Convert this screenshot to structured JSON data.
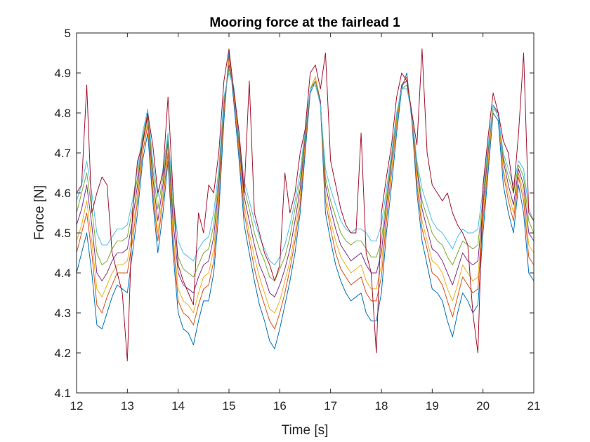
{
  "chart_data": {
    "type": "line",
    "title": "Mooring force at the fairlead 1",
    "xlabel": "Time [s]",
    "ylabel": "Force [N]",
    "xlim": [
      12,
      21
    ],
    "ylim": [
      4.1,
      5
    ],
    "x_ticks": [
      12,
      13,
      14,
      15,
      16,
      17,
      18,
      19,
      20,
      21
    ],
    "y_ticks": [
      4.1,
      4.2,
      4.3,
      4.4,
      4.5,
      4.6,
      4.7,
      4.8,
      4.9,
      5
    ],
    "x_tick_labels": [
      "12",
      "13",
      "14",
      "15",
      "16",
      "17",
      "18",
      "19",
      "20",
      "21"
    ],
    "y_tick_labels": [
      "4.1",
      "4.2",
      "4.3",
      "4.4",
      "4.5",
      "4.6",
      "4.7",
      "4.8",
      "4.9",
      "5"
    ],
    "grid": false,
    "box": true,
    "x": [
      12.0,
      12.1,
      12.2,
      12.3,
      12.4,
      12.5,
      12.6,
      12.7,
      12.8,
      12.9,
      13.0,
      13.1,
      13.2,
      13.3,
      13.4,
      13.5,
      13.6,
      13.7,
      13.8,
      13.9,
      14.0,
      14.1,
      14.2,
      14.3,
      14.4,
      14.5,
      14.6,
      14.7,
      14.8,
      14.9,
      15.0,
      15.1,
      15.2,
      15.3,
      15.4,
      15.5,
      15.6,
      15.7,
      15.8,
      15.9,
      16.0,
      16.1,
      16.2,
      16.3,
      16.4,
      16.5,
      16.6,
      16.7,
      16.8,
      16.9,
      17.0,
      17.1,
      17.2,
      17.3,
      17.4,
      17.5,
      17.6,
      17.7,
      17.8,
      17.9,
      18.0,
      18.1,
      18.2,
      18.3,
      18.4,
      18.5,
      18.6,
      18.7,
      18.8,
      18.9,
      19.0,
      19.1,
      19.2,
      19.3,
      19.4,
      19.5,
      19.6,
      19.7,
      19.8,
      19.9,
      20.0,
      20.1,
      20.2,
      20.3,
      20.4,
      20.5,
      20.6,
      20.7,
      20.8,
      20.9,
      21.0
    ],
    "series": [
      {
        "color": "#0072BD",
        "values": [
          4.4,
          4.45,
          4.5,
          4.4,
          4.27,
          4.26,
          4.3,
          4.34,
          4.37,
          4.36,
          4.35,
          4.45,
          4.55,
          4.68,
          4.75,
          4.58,
          4.45,
          4.55,
          4.68,
          4.45,
          4.3,
          4.26,
          4.25,
          4.22,
          4.28,
          4.33,
          4.33,
          4.4,
          4.55,
          4.78,
          4.95,
          4.82,
          4.68,
          4.52,
          4.45,
          4.38,
          4.32,
          4.28,
          4.23,
          4.21,
          4.26,
          4.32,
          4.38,
          4.45,
          4.55,
          4.7,
          4.85,
          4.88,
          4.82,
          4.55,
          4.48,
          4.42,
          4.38,
          4.35,
          4.33,
          4.34,
          4.35,
          4.3,
          4.28,
          4.28,
          4.35,
          4.5,
          4.62,
          4.75,
          4.86,
          4.9,
          4.78,
          4.6,
          4.48,
          4.42,
          4.36,
          4.35,
          4.33,
          4.28,
          4.24,
          4.3,
          4.35,
          4.33,
          4.3,
          4.32,
          4.5,
          4.65,
          4.8,
          4.78,
          4.62,
          4.55,
          4.5,
          4.62,
          4.55,
          4.4,
          4.38
        ]
      },
      {
        "color": "#D95319",
        "values": [
          4.45,
          4.5,
          4.55,
          4.45,
          4.32,
          4.3,
          4.34,
          4.37,
          4.4,
          4.4,
          4.4,
          4.48,
          4.58,
          4.7,
          4.77,
          4.6,
          4.48,
          4.58,
          4.7,
          4.48,
          4.33,
          4.3,
          4.29,
          4.27,
          4.32,
          4.36,
          4.37,
          4.43,
          4.58,
          4.8,
          4.94,
          4.84,
          4.7,
          4.55,
          4.48,
          4.41,
          4.36,
          4.32,
          4.28,
          4.26,
          4.3,
          4.35,
          4.41,
          4.48,
          4.57,
          4.72,
          4.86,
          4.89,
          4.83,
          4.58,
          4.51,
          4.45,
          4.41,
          4.39,
          4.37,
          4.38,
          4.39,
          4.35,
          4.33,
          4.33,
          4.39,
          4.53,
          4.65,
          4.77,
          4.87,
          4.89,
          4.79,
          4.62,
          4.51,
          4.46,
          4.4,
          4.39,
          4.37,
          4.33,
          4.29,
          4.34,
          4.39,
          4.37,
          4.35,
          4.36,
          4.53,
          4.67,
          4.81,
          4.8,
          4.65,
          4.58,
          4.53,
          4.64,
          4.58,
          4.44,
          4.42
        ]
      },
      {
        "color": "#EDB120",
        "values": [
          4.48,
          4.52,
          4.58,
          4.48,
          4.36,
          4.34,
          4.37,
          4.4,
          4.42,
          4.42,
          4.43,
          4.5,
          4.6,
          4.72,
          4.78,
          4.62,
          4.5,
          4.6,
          4.72,
          4.5,
          4.36,
          4.33,
          4.32,
          4.3,
          4.35,
          4.39,
          4.4,
          4.46,
          4.6,
          4.81,
          4.93,
          4.85,
          4.71,
          4.57,
          4.5,
          4.44,
          4.39,
          4.35,
          4.31,
          4.3,
          4.33,
          4.38,
          4.43,
          4.5,
          4.59,
          4.73,
          4.86,
          4.89,
          4.83,
          4.6,
          4.53,
          4.48,
          4.44,
          4.42,
          4.4,
          4.41,
          4.42,
          4.38,
          4.36,
          4.36,
          4.42,
          4.55,
          4.66,
          4.78,
          4.87,
          4.88,
          4.8,
          4.64,
          4.53,
          4.48,
          4.43,
          4.42,
          4.4,
          4.36,
          4.33,
          4.37,
          4.42,
          4.4,
          4.38,
          4.39,
          4.55,
          4.68,
          4.81,
          4.8,
          4.66,
          4.6,
          4.55,
          4.65,
          4.6,
          4.47,
          4.45
        ]
      },
      {
        "color": "#7E2F8E",
        "values": [
          4.52,
          4.56,
          4.62,
          4.52,
          4.4,
          4.38,
          4.4,
          4.43,
          4.45,
          4.45,
          4.46,
          4.53,
          4.62,
          4.73,
          4.79,
          4.64,
          4.53,
          4.62,
          4.73,
          4.53,
          4.4,
          4.37,
          4.36,
          4.35,
          4.39,
          4.42,
          4.43,
          4.49,
          4.62,
          4.82,
          4.92,
          4.86,
          4.72,
          4.59,
          4.53,
          4.47,
          4.42,
          4.39,
          4.35,
          4.34,
          4.37,
          4.41,
          4.46,
          4.53,
          4.61,
          4.74,
          4.86,
          4.88,
          4.83,
          4.62,
          4.56,
          4.51,
          4.47,
          4.45,
          4.43,
          4.44,
          4.45,
          4.42,
          4.4,
          4.4,
          4.45,
          4.57,
          4.68,
          4.79,
          4.87,
          4.88,
          4.8,
          4.66,
          4.56,
          4.51,
          4.46,
          4.45,
          4.43,
          4.4,
          4.37,
          4.41,
          4.45,
          4.43,
          4.42,
          4.43,
          4.57,
          4.7,
          4.82,
          4.8,
          4.68,
          4.62,
          4.57,
          4.66,
          4.62,
          4.5,
          4.48
        ]
      },
      {
        "color": "#77AC30",
        "values": [
          4.55,
          4.6,
          4.65,
          4.56,
          4.45,
          4.42,
          4.43,
          4.46,
          4.48,
          4.48,
          4.49,
          4.56,
          4.64,
          4.74,
          4.8,
          4.66,
          4.56,
          4.64,
          4.74,
          4.56,
          4.44,
          4.41,
          4.4,
          4.39,
          4.42,
          4.45,
          4.46,
          4.52,
          4.64,
          4.83,
          4.91,
          4.86,
          4.73,
          4.61,
          4.56,
          4.5,
          4.46,
          4.43,
          4.39,
          4.38,
          4.41,
          4.44,
          4.49,
          4.56,
          4.63,
          4.75,
          4.86,
          4.88,
          4.82,
          4.64,
          4.58,
          4.54,
          4.5,
          4.48,
          4.47,
          4.48,
          4.48,
          4.46,
          4.44,
          4.44,
          4.48,
          4.59,
          4.69,
          4.79,
          4.86,
          4.87,
          4.8,
          4.67,
          4.58,
          4.54,
          4.5,
          4.48,
          4.47,
          4.44,
          4.42,
          4.45,
          4.48,
          4.47,
          4.46,
          4.47,
          4.59,
          4.71,
          4.82,
          4.79,
          4.69,
          4.64,
          4.6,
          4.67,
          4.64,
          4.53,
          4.5
        ]
      },
      {
        "color": "#4DBEEE",
        "values": [
          4.58,
          4.62,
          4.68,
          4.6,
          4.5,
          4.47,
          4.47,
          4.49,
          4.51,
          4.51,
          4.52,
          4.58,
          4.66,
          4.75,
          4.81,
          4.68,
          4.59,
          4.66,
          4.75,
          4.59,
          4.48,
          4.45,
          4.44,
          4.43,
          4.46,
          4.48,
          4.49,
          4.55,
          4.66,
          4.84,
          4.9,
          4.86,
          4.74,
          4.63,
          4.58,
          4.53,
          4.49,
          4.46,
          4.43,
          4.42,
          4.44,
          4.47,
          4.52,
          4.58,
          4.65,
          4.76,
          4.86,
          4.87,
          4.82,
          4.66,
          4.61,
          4.57,
          4.53,
          4.51,
          4.5,
          4.51,
          4.51,
          4.5,
          4.48,
          4.48,
          4.52,
          4.61,
          4.7,
          4.8,
          4.86,
          4.86,
          4.8,
          4.68,
          4.61,
          4.57,
          4.53,
          4.51,
          4.5,
          4.48,
          4.46,
          4.49,
          4.51,
          4.5,
          4.5,
          4.51,
          4.61,
          4.72,
          4.82,
          4.79,
          4.7,
          4.66,
          4.62,
          4.68,
          4.66,
          4.56,
          4.53
        ]
      },
      {
        "color": "#A2142F",
        "values": [
          4.6,
          4.62,
          4.87,
          4.55,
          4.6,
          4.64,
          4.62,
          4.45,
          4.4,
          4.35,
          4.18,
          4.55,
          4.68,
          4.72,
          4.8,
          4.72,
          4.6,
          4.65,
          4.84,
          4.6,
          4.42,
          4.38,
          4.35,
          4.32,
          4.55,
          4.5,
          4.62,
          4.6,
          4.7,
          4.88,
          4.96,
          4.85,
          4.75,
          4.6,
          4.88,
          4.55,
          4.5,
          4.45,
          4.42,
          4.38,
          4.42,
          4.65,
          4.55,
          4.6,
          4.7,
          4.76,
          4.9,
          4.92,
          4.86,
          4.95,
          4.68,
          4.62,
          4.56,
          4.52,
          4.5,
          4.5,
          4.75,
          4.45,
          4.4,
          4.2,
          4.55,
          4.64,
          4.72,
          4.84,
          4.9,
          4.88,
          4.8,
          4.72,
          4.96,
          4.7,
          4.62,
          4.6,
          4.58,
          4.6,
          4.55,
          4.52,
          4.5,
          4.47,
          4.3,
          4.2,
          4.62,
          4.74,
          4.85,
          4.8,
          4.73,
          4.7,
          4.6,
          4.75,
          4.95,
          4.55,
          4.53
        ]
      }
    ]
  }
}
